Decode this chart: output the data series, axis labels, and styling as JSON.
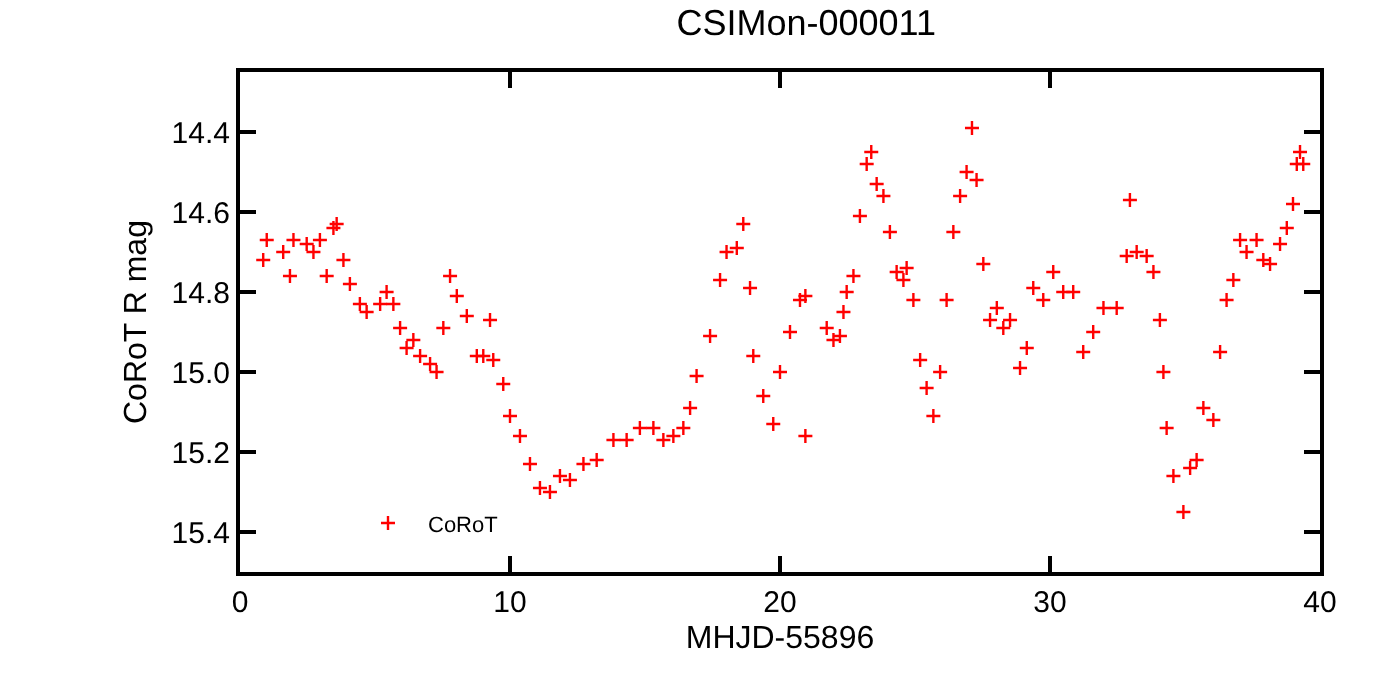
{
  "chart_data": {
    "type": "scatter",
    "title": "CSIMon-000011",
    "xlabel": "MHJD-55896",
    "ylabel": "CoRoT R mag",
    "xlim": [
      0,
      40
    ],
    "xticks": [
      0,
      10,
      20,
      30,
      40
    ],
    "ylim": [
      15.5,
      14.25
    ],
    "yticks": [
      {
        "value": 14.4,
        "label": "14.4"
      },
      {
        "value": 14.6,
        "label": "14.6"
      },
      {
        "value": 14.8,
        "label": "14.8"
      },
      {
        "value": 15.0,
        "label": "15.0"
      },
      {
        "value": 15.2,
        "label": "15.2"
      },
      {
        "value": 15.4,
        "label": "15.4"
      }
    ],
    "marker": "cross",
    "legend": "bottom left",
    "series": [
      {
        "name": "CoRoT",
        "color": "#ff0000",
        "x": [
          0.86,
          0.99,
          1.6,
          1.85,
          1.98,
          2.47,
          2.72,
          2.96,
          3.21,
          3.46,
          3.58,
          3.83,
          4.07,
          4.44,
          4.69,
          5.19,
          5.43,
          5.68,
          5.93,
          6.17,
          6.42,
          6.67,
          7.04,
          7.28,
          7.53,
          7.78,
          8.03,
          8.4,
          8.77,
          9.01,
          9.26,
          9.38,
          9.75,
          10.0,
          10.37,
          10.74,
          11.11,
          11.48,
          11.85,
          12.22,
          12.72,
          13.21,
          13.83,
          14.32,
          14.81,
          15.31,
          15.68,
          16.05,
          16.42,
          16.67,
          16.91,
          17.41,
          17.78,
          18.02,
          18.4,
          18.64,
          18.89,
          19.01,
          19.38,
          19.75,
          20.0,
          20.37,
          20.74,
          20.94,
          20.94,
          21.73,
          21.98,
          22.22,
          22.35,
          22.47,
          22.72,
          22.96,
          23.21,
          23.38,
          23.58,
          23.83,
          24.07,
          24.32,
          24.57,
          24.69,
          24.94,
          25.19,
          25.43,
          25.68,
          25.93,
          26.17,
          26.42,
          26.67,
          26.91,
          27.11,
          27.28,
          27.53,
          27.78,
          28.03,
          28.27,
          28.52,
          28.89,
          29.14,
          29.38,
          29.75,
          30.12,
          30.49,
          30.86,
          31.23,
          31.6,
          31.98,
          32.47,
          32.84,
          32.96,
          33.21,
          33.58,
          33.83,
          34.07,
          34.2,
          34.32,
          34.57,
          34.94,
          35.19,
          35.43,
          35.68,
          36.05,
          36.3,
          36.54,
          36.79,
          37.04,
          37.28,
          37.65,
          37.9,
          38.15,
          38.52,
          38.77,
          39.0,
          39.14,
          39.26,
          39.38
        ],
        "values": [
          14.72,
          14.67,
          14.7,
          14.76,
          14.67,
          14.68,
          14.7,
          14.67,
          14.76,
          14.64,
          14.63,
          14.72,
          14.78,
          14.83,
          14.85,
          14.83,
          14.8,
          14.83,
          14.89,
          14.94,
          14.92,
          14.96,
          14.98,
          15.0,
          14.89,
          14.76,
          14.81,
          14.86,
          14.96,
          14.96,
          14.87,
          14.97,
          15.03,
          15.11,
          15.16,
          15.23,
          15.29,
          15.3,
          15.26,
          15.27,
          15.23,
          15.22,
          15.17,
          15.17,
          15.14,
          15.14,
          15.17,
          15.16,
          15.14,
          15.09,
          15.01,
          14.91,
          14.77,
          14.7,
          14.69,
          14.63,
          14.79,
          14.96,
          15.06,
          15.13,
          15.0,
          14.9,
          14.82,
          14.81,
          15.16,
          14.89,
          14.92,
          14.91,
          14.85,
          14.8,
          14.76,
          14.61,
          14.48,
          14.45,
          14.53,
          14.56,
          14.65,
          14.75,
          14.77,
          14.74,
          14.82,
          14.97,
          15.04,
          15.11,
          15.0,
          14.82,
          14.65,
          14.56,
          14.5,
          14.39,
          14.52,
          14.73,
          14.87,
          14.84,
          14.89,
          14.87,
          14.99,
          14.94,
          14.79,
          14.82,
          14.75,
          14.8,
          14.8,
          14.95,
          14.9,
          14.84,
          14.84,
          14.71,
          14.57,
          14.7,
          14.71,
          14.75,
          14.87,
          15.0,
          15.14,
          15.26,
          15.35,
          15.24,
          15.22,
          15.09,
          15.12,
          14.95,
          14.82,
          14.77,
          14.67,
          14.7,
          14.67,
          14.72,
          14.73,
          14.68,
          14.64,
          14.58,
          14.48,
          14.45,
          14.48
        ]
      }
    ]
  }
}
